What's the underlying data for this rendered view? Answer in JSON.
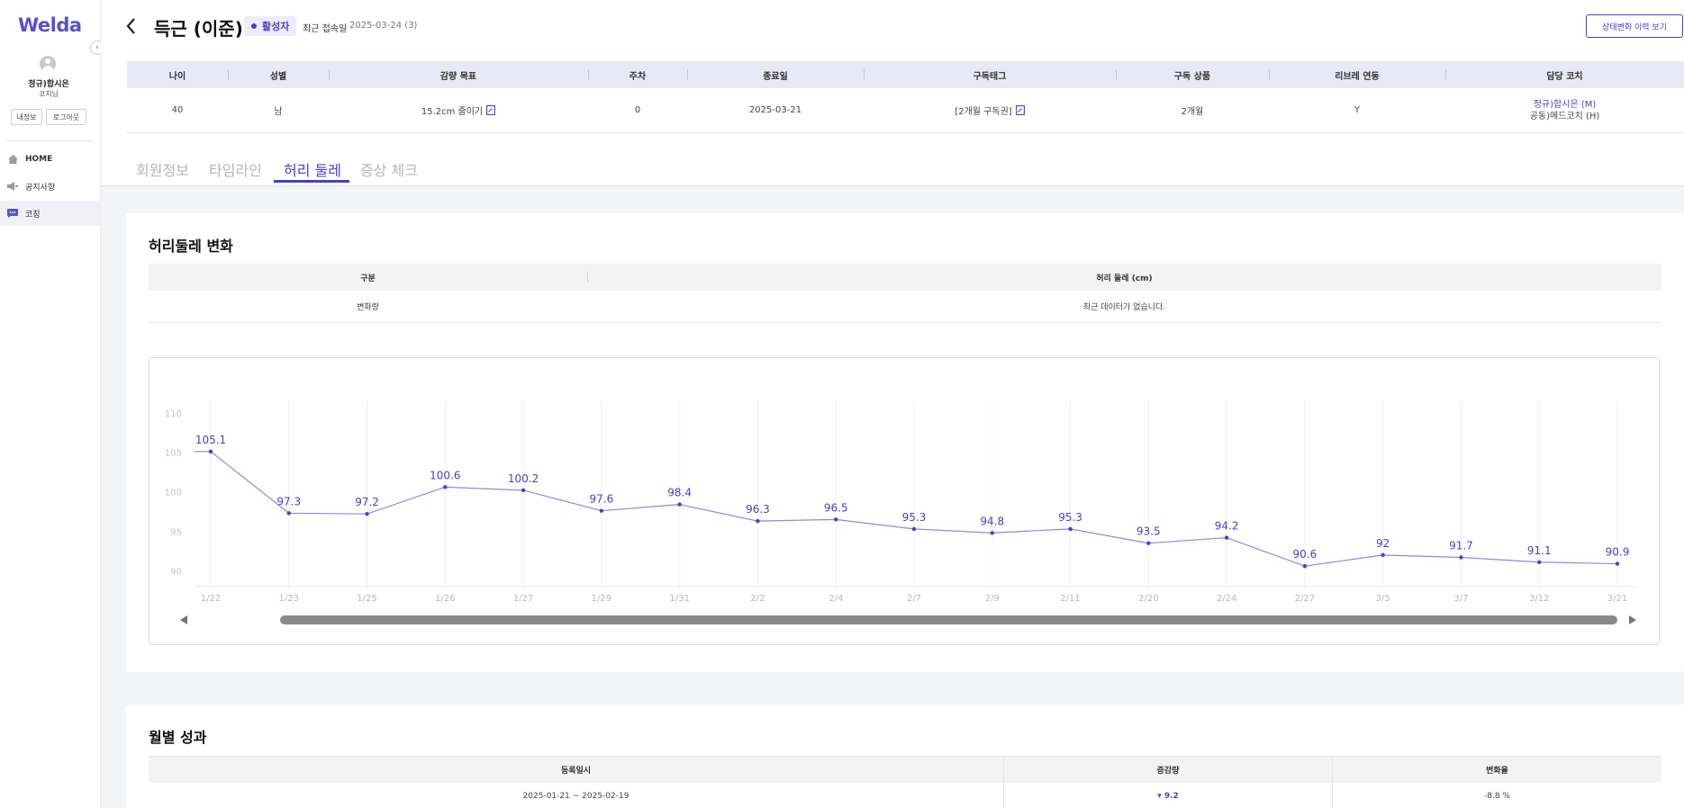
{
  "sidebar": {
    "logo": "Welda",
    "user_name": "정규)합시은",
    "user_role": "코치님",
    "my_info_label": "내정보",
    "logout_label": "로그아웃",
    "nav": [
      {
        "label": "HOME",
        "icon": "home-icon"
      },
      {
        "label": "공지사항",
        "icon": "megaphone-icon"
      },
      {
        "label": "코칭",
        "icon": "chat-icon",
        "active": true
      }
    ]
  },
  "header": {
    "title": "득근 (이준)",
    "status": "활성자",
    "last_login_label": "최근 접속일",
    "last_login_value": "2025-03-24 (3)",
    "history_button": "상태변화 이력 보기"
  },
  "member_info": {
    "columns": [
      "나이",
      "성별",
      "감량 목표",
      "주차",
      "종료일",
      "구독태그",
      "구독 상품",
      "리브레 연동",
      "담당 코치"
    ],
    "row": {
      "age": "40",
      "gender": "남",
      "goal": "15.2cm 줄이기",
      "week": "0",
      "end_date": "2025-03-21",
      "sub_tag": "[2개월 구독권]",
      "product": "2개월",
      "libre": "Y",
      "coach_main": "정규)합시은 (M)",
      "coach_sub": "공동)메드코치 (H)"
    }
  },
  "tabs": [
    "회원정보",
    "타임라인",
    "허리 둘레",
    "증상 체크"
  ],
  "active_tab": 2,
  "waist_section": {
    "title": "허리둘레 변화",
    "col_category": "구분",
    "col_waist": "허리 둘레 (cm)",
    "row_label": "변화량",
    "row_value": "최근 데이터가 없습니다."
  },
  "chart_data": {
    "type": "line",
    "x": [
      "1/22",
      "1/23",
      "1/25",
      "1/26",
      "1/27",
      "1/29",
      "1/31",
      "2/2",
      "2/4",
      "2/7",
      "2/9",
      "2/11",
      "2/20",
      "2/24",
      "2/27",
      "3/5",
      "3/7",
      "3/12",
      "3/21"
    ],
    "series": [
      {
        "values": [
          105.1,
          97.3,
          97.2,
          100.6,
          100.2,
          97.6,
          98.4,
          96.3,
          96.5,
          95.3,
          94.8,
          95.3,
          93.5,
          94.2,
          90.6,
          92,
          91.7,
          91.1,
          90.9
        ]
      }
    ],
    "yticks": [
      90,
      95,
      100,
      105,
      110
    ],
    "ylim": [
      88,
      111
    ],
    "grid": true,
    "line_color": "#8f87e0",
    "label_color": "#4a3fc4"
  },
  "monthly_section": {
    "title": "월별 성과",
    "columns": [
      "등록일시",
      "증감량",
      "변화율"
    ],
    "rows": [
      {
        "period": "2025-01-21 ~ 2025-02-19",
        "change": "▾ 9.2",
        "rate": "-8.8 %"
      }
    ]
  }
}
